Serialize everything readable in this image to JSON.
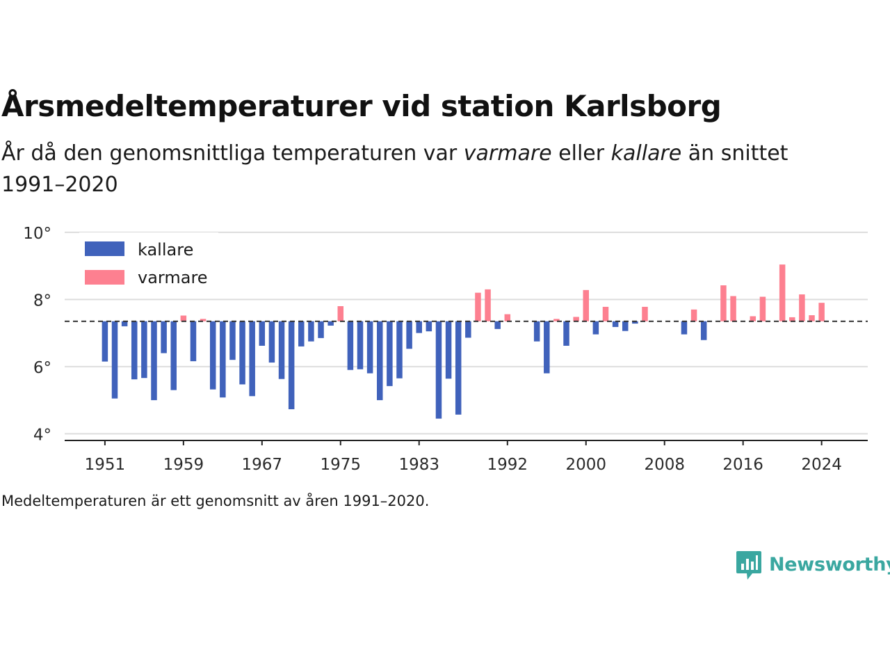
{
  "title": "Årsmedeltemperaturer vid station Karlsborg",
  "subtitle": {
    "part1": "År då den genomsnittliga temperaturen var ",
    "warm_word": "varmare",
    "part2": " eller ",
    "cold_word": "kallare",
    "part3": " än snittet 1991–2020"
  },
  "note": "Medeltemperaturen är ett genomsnitt av åren 1991–2020.",
  "brand": {
    "name": "Newsworthy",
    "icon": "newsworthy-logo-icon",
    "color": "#3aa7a0"
  },
  "colors": {
    "kallare": "#4062bb",
    "varmare": "#fd8090",
    "baseline": "#333333",
    "grid": "#dddddd",
    "axis": "#222222"
  },
  "chart_data": {
    "type": "bar",
    "baseline": 7.35,
    "ylim": [
      3.8,
      10.1
    ],
    "yticks": [
      4,
      6,
      8,
      10
    ],
    "ytick_labels": [
      "4°",
      "6°",
      "8°",
      "10°"
    ],
    "xticks": [
      1951,
      1959,
      1967,
      1975,
      1983,
      1992,
      2000,
      2008,
      2016,
      2024
    ],
    "xlim": [
      1946.9,
      2028.7
    ],
    "grid": true,
    "legend": {
      "position": "top-left",
      "entries": [
        {
          "name": "kallare",
          "color": "#4062bb"
        },
        {
          "name": "varmare",
          "color": "#fd8090"
        }
      ]
    },
    "series": [
      {
        "name": "kallare",
        "x": [
          1951,
          1952,
          1953,
          1954,
          1955,
          1956,
          1957,
          1958,
          1960,
          1962,
          1963,
          1964,
          1965,
          1966,
          1967,
          1968,
          1969,
          1970,
          1971,
          1972,
          1973,
          1974,
          1976,
          1977,
          1978,
          1979,
          1980,
          1981,
          1982,
          1983,
          1984,
          1985,
          1986,
          1987,
          1988,
          1991,
          1995,
          1996,
          1998,
          2001,
          2003,
          2004,
          2005,
          2010,
          2012
        ],
        "values": [
          6.15,
          5.05,
          7.2,
          5.62,
          5.66,
          5.0,
          6.4,
          5.3,
          6.16,
          5.32,
          5.08,
          6.2,
          5.47,
          5.12,
          6.62,
          6.12,
          5.63,
          4.73,
          6.6,
          6.75,
          6.85,
          7.22,
          5.9,
          5.92,
          5.8,
          5.0,
          5.42,
          5.65,
          6.53,
          7.0,
          7.05,
          4.45,
          5.64,
          4.57,
          6.86,
          7.12,
          6.75,
          5.8,
          6.62,
          6.96,
          7.18,
          7.06,
          7.28,
          6.96,
          6.79
        ]
      },
      {
        "name": "varmare",
        "x": [
          1959,
          1961,
          1975,
          1989,
          1990,
          1992,
          1997,
          1999,
          2000,
          2002,
          2006,
          2011,
          2014,
          2015,
          2017,
          2018,
          2020,
          2021,
          2022,
          2023,
          2024
        ],
        "values": [
          7.52,
          7.42,
          7.8,
          8.2,
          8.3,
          7.56,
          7.42,
          7.48,
          8.28,
          7.78,
          7.78,
          7.7,
          8.42,
          8.1,
          7.5,
          8.08,
          9.04,
          7.47,
          8.15,
          7.53,
          7.9
        ]
      }
    ]
  }
}
